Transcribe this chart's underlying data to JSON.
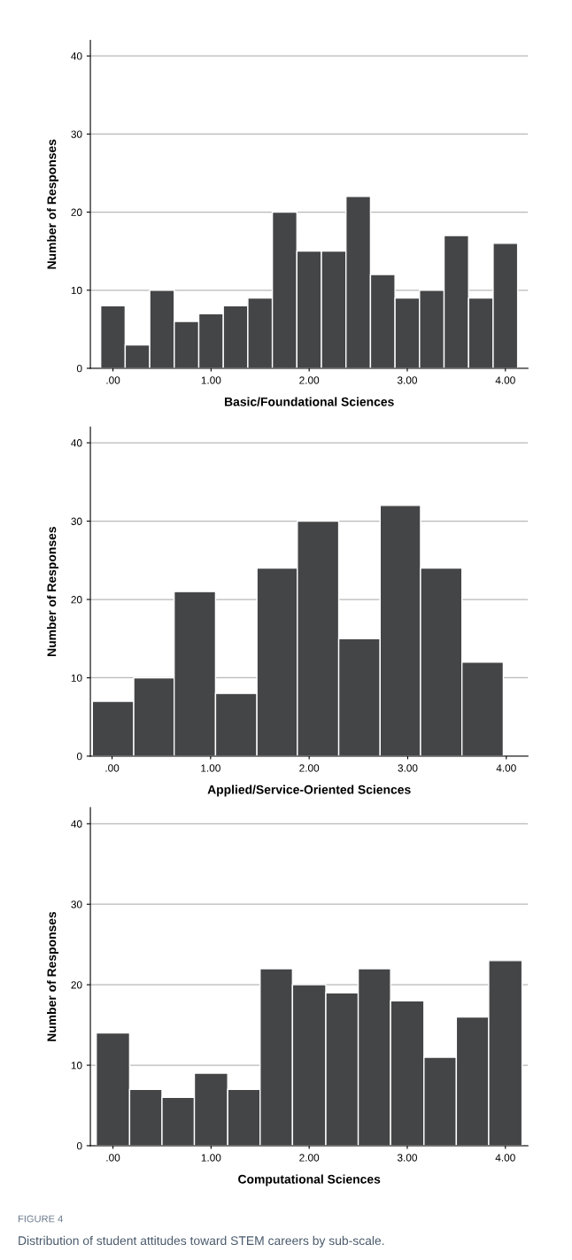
{
  "chart_data": [
    {
      "type": "histogram",
      "xlabel": "Basic/Foundational Sciences",
      "ylabel": "Number of Responses",
      "bins": [
        -0.125,
        0.125,
        0.375,
        0.625,
        0.875,
        1.125,
        1.375,
        1.625,
        1.875,
        2.125,
        2.375,
        2.625,
        2.875,
        3.125,
        3.375,
        3.625,
        3.875,
        4.125
      ],
      "values": [
        8,
        3,
        10,
        6,
        7,
        8,
        9,
        20,
        15,
        15,
        22,
        12,
        9,
        10,
        17,
        9,
        16
      ],
      "color": "#444547",
      "xlim": [
        -0.23,
        4.23
      ],
      "ylim": [
        0,
        42
      ],
      "xticks": [
        {
          "value": 0,
          "label": ".00"
        },
        {
          "value": 1,
          "label": "1.00"
        },
        {
          "value": 2,
          "label": "2.00"
        },
        {
          "value": 3,
          "label": "3.00"
        },
        {
          "value": 4,
          "label": "4.00"
        }
      ],
      "yticks": [
        0,
        10,
        20,
        30,
        40
      ],
      "grid": "y"
    },
    {
      "type": "histogram",
      "xlabel": "Applied/Service-Oriented Sciences",
      "ylabel": "Number of Responses",
      "bins": [
        -0.2,
        0.22,
        0.63,
        1.05,
        1.47,
        1.88,
        2.3,
        2.72,
        3.13,
        3.55,
        3.97
      ],
      "values": [
        7,
        10,
        21,
        8,
        24,
        30,
        15,
        32,
        24,
        12
      ],
      "color": "#444547",
      "xlim": [
        -0.22,
        4.22
      ],
      "ylim": [
        0,
        42
      ],
      "xticks": [
        {
          "value": 0,
          "label": ".00"
        },
        {
          "value": 1,
          "label": "1.00"
        },
        {
          "value": 2,
          "label": "2.00"
        },
        {
          "value": 3,
          "label": "3.00"
        },
        {
          "value": 4,
          "label": "4.00"
        }
      ],
      "yticks": [
        0,
        10,
        20,
        30,
        40
      ],
      "grid": "y"
    },
    {
      "type": "histogram",
      "xlabel": "Computational Sciences",
      "ylabel": "Number of Responses",
      "bins": [
        -0.17,
        0.17,
        0.5,
        0.83,
        1.17,
        1.5,
        1.83,
        2.17,
        2.5,
        2.83,
        3.17,
        3.5,
        3.83,
        4.17
      ],
      "values": [
        14,
        7,
        6,
        9,
        7,
        22,
        20,
        19,
        22,
        18,
        11,
        16,
        23
      ],
      "color": "#444547",
      "xlim": [
        -0.23,
        4.23
      ],
      "ylim": [
        0,
        42
      ],
      "xticks": [
        {
          "value": 0,
          "label": ".00"
        },
        {
          "value": 1,
          "label": "1.00"
        },
        {
          "value": 2,
          "label": "2.00"
        },
        {
          "value": 3,
          "label": "3.00"
        },
        {
          "value": 4,
          "label": "4.00"
        }
      ],
      "yticks": [
        0,
        10,
        20,
        30,
        40
      ],
      "grid": "y",
      "annotations": [
        "FIGURE 4",
        "Distribution of student attitudes toward STEM careers by sub-scale."
      ]
    }
  ]
}
